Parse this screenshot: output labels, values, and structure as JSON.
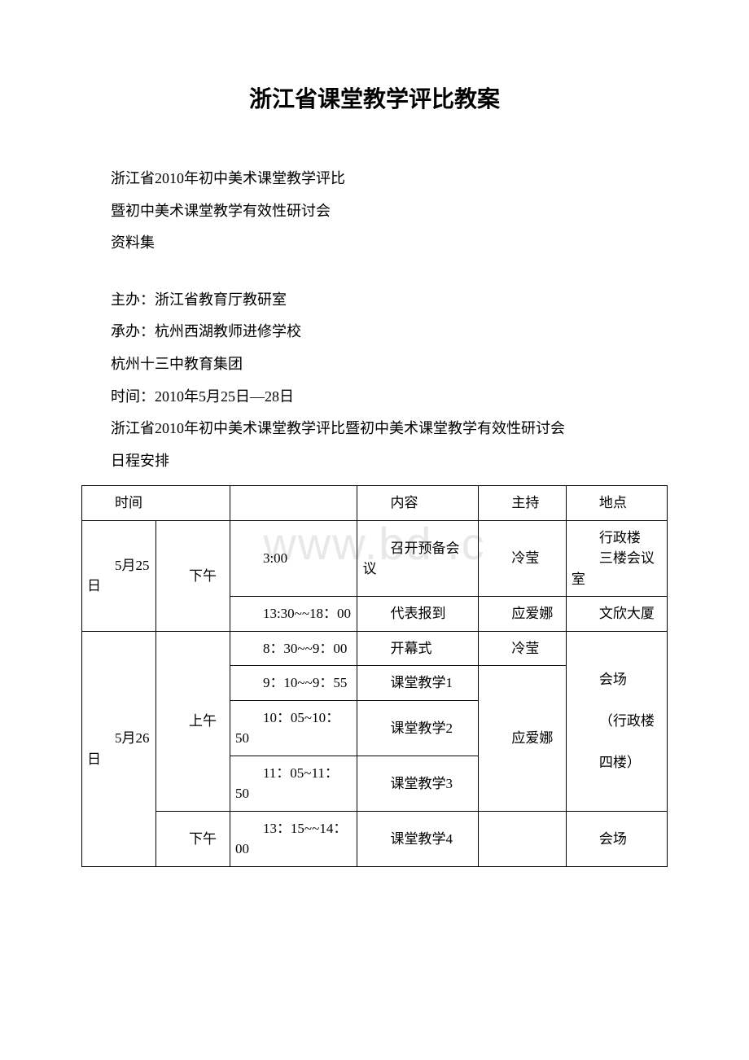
{
  "watermark": "www.bd    .c",
  "title": "浙江省课堂教学评比教案",
  "intro": [
    "浙江省2010年初中美术课堂教学评比",
    "暨初中美术课堂教学有效性研讨会",
    "资料集"
  ],
  "details": [
    "主办：浙江省教育厅教研室",
    "承办：杭州西湖教师进修学校",
    "杭州十三中教育集团",
    "时间：2010年5月25日—28日",
    "浙江省2010年初中美术课堂教学评比暨初中美术课堂教学有效性研讨会",
    "日程安排"
  ],
  "table": {
    "headers": {
      "time": "时间",
      "content": "内容",
      "host": "主持",
      "place": "地点"
    },
    "rows": {
      "r1": {
        "date": "5月25日",
        "period": "下午",
        "time": "3:00",
        "content": "召开预备会议",
        "host": "冷莹",
        "place_l1": "行政楼",
        "place_l2": "三楼会议室"
      },
      "r2": {
        "time": "13:30~~18：00",
        "content": "代表报到",
        "host": "应爱娜",
        "place": "文欣大厦"
      },
      "r3": {
        "date": "5月26日",
        "period_am": "上午",
        "time": "8：30~~9：00",
        "content": "开幕式",
        "host": "冷莹",
        "place_l1": "会场",
        "place_l2": "（行政楼",
        "place_l3": "四楼）"
      },
      "r4": {
        "time": "9：10~~9：55",
        "content": "课堂教学1",
        "host": "应爱娜"
      },
      "r5": {
        "time": "10：05~10：50",
        "content": "课堂教学2"
      },
      "r6": {
        "time": "11：05~11：50",
        "content": "课堂教学3"
      },
      "r7": {
        "period_pm": "下午",
        "time": "13：15~~14：00",
        "content": "课堂教学4",
        "place": "会场"
      }
    }
  }
}
